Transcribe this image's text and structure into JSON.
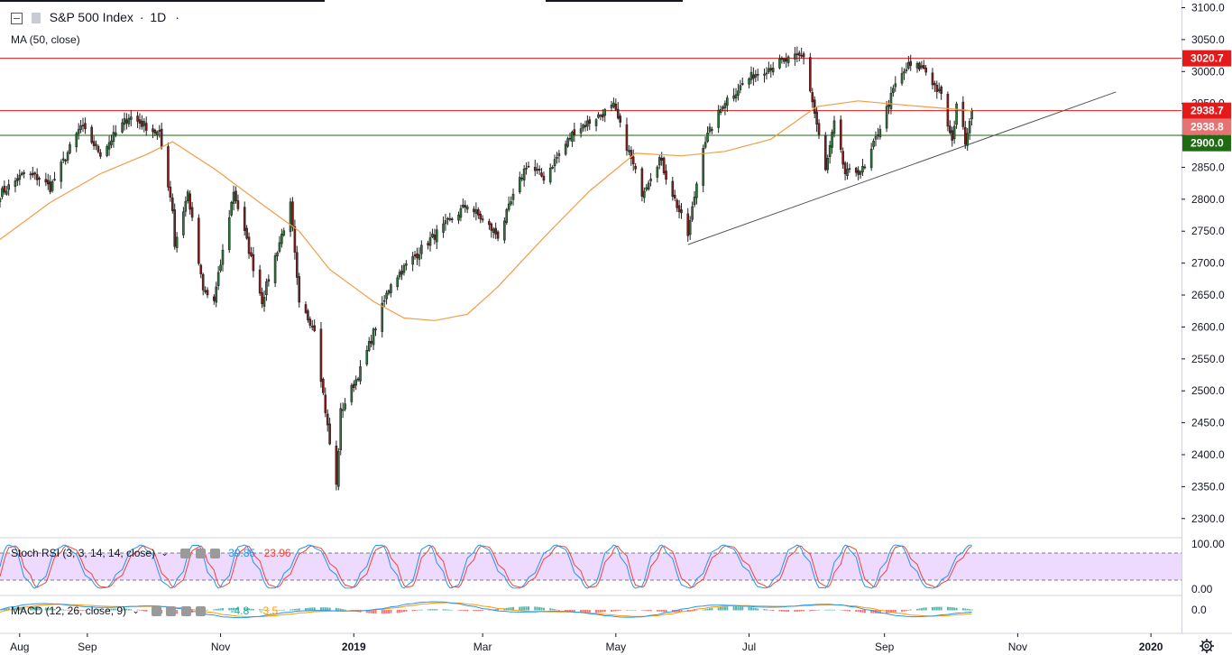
{
  "header": {
    "symbol": "S&P 500 Index",
    "interval": "1D",
    "separator": "·",
    "ma_label": "MA (50, close)"
  },
  "price_scale": {
    "ticks": [
      "3100.0",
      "3050.0",
      "3000.0",
      "2950.0",
      "2900.0",
      "2850.0",
      "2800.0",
      "2750.0",
      "2700.0",
      "2650.0",
      "2600.0",
      "2550.0",
      "2500.0",
      "2450.0",
      "2400.0",
      "2350.0",
      "2300.0"
    ],
    "range": [
      2270,
      3112
    ],
    "badges": [
      {
        "value": 3020.7,
        "label": "3020.7",
        "color": "#e41a1a"
      },
      {
        "value": 2938.7,
        "label": "2938.7",
        "color": "#e41a1a"
      },
      {
        "value": 2938.8,
        "label": "2938.8",
        "color": "#e57373"
      },
      {
        "value": 2900.0,
        "label": "2900.0",
        "color": "#1e6b12"
      }
    ]
  },
  "time_axis": {
    "labels": [
      "Aug",
      "Sep",
      "Nov",
      "2019",
      "Mar",
      "May",
      "Jul",
      "Sep",
      "Nov",
      "2020"
    ],
    "bold": [
      "2019",
      "2020"
    ]
  },
  "colors": {
    "up": "#2a7a38",
    "down": "#8b1a1a",
    "ma": "#f39c45",
    "red_level": "#e41a1a",
    "green_level": "#1e6b12",
    "trendline": "#555555",
    "rsi_fill": "#e8ccff",
    "stoch_k": "#2196f3",
    "stoch_d": "#f44336",
    "macd": "#2196f3",
    "signal": "#ff9800"
  },
  "chart_data": {
    "type": "candlestick",
    "title": "S&P 500 Index · 1D",
    "series_name": "S&P 500 Index",
    "x_range": [
      "2018-07-23",
      "2020-01-15"
    ],
    "ylim": [
      2270,
      3112
    ],
    "horizontal_levels": [
      {
        "value": 3020.7,
        "color": "red"
      },
      {
        "value": 2938.7,
        "color": "red"
      },
      {
        "value": 2900.0,
        "color": "green"
      }
    ],
    "trendline": {
      "from": [
        "2019-06-03",
        2729
      ],
      "to": [
        "2019-12-16",
        2968
      ]
    },
    "close_path": [
      [
        "2018-07-23",
        2808
      ],
      [
        "2018-08-03",
        2840
      ],
      [
        "2018-08-10",
        2833
      ],
      [
        "2018-08-15",
        2818
      ],
      [
        "2018-08-29",
        2914
      ],
      [
        "2018-09-07",
        2872
      ],
      [
        "2018-09-20",
        2930
      ],
      [
        "2018-09-28",
        2914
      ],
      [
        "2018-10-04",
        2901
      ],
      [
        "2018-10-10",
        2785
      ],
      [
        "2018-10-11",
        2728
      ],
      [
        "2018-10-17",
        2810
      ],
      [
        "2018-10-24",
        2656
      ],
      [
        "2018-10-29",
        2641
      ],
      [
        "2018-11-07",
        2813
      ],
      [
        "2018-11-20",
        2641
      ],
      [
        "2018-12-03",
        2790
      ],
      [
        "2018-12-07",
        2633
      ],
      [
        "2018-12-14",
        2600
      ],
      [
        "2018-12-21",
        2417
      ],
      [
        "2018-12-24",
        2351
      ],
      [
        "2018-12-26",
        2467
      ],
      [
        "2019-01-04",
        2532
      ],
      [
        "2019-01-18",
        2670
      ],
      [
        "2019-02-05",
        2737
      ],
      [
        "2019-02-22",
        2792
      ],
      [
        "2019-03-08",
        2743
      ],
      [
        "2019-03-21",
        2854
      ],
      [
        "2019-03-29",
        2834
      ],
      [
        "2019-04-12",
        2907
      ],
      [
        "2019-04-30",
        2945
      ],
      [
        "2019-05-13",
        2811
      ],
      [
        "2019-05-21",
        2864
      ],
      [
        "2019-06-03",
        2744
      ],
      [
        "2019-06-10",
        2886
      ],
      [
        "2019-06-20",
        2954
      ],
      [
        "2019-07-03",
        2995
      ],
      [
        "2019-07-15",
        3014
      ],
      [
        "2019-07-26",
        3025
      ],
      [
        "2019-08-05",
        2844
      ],
      [
        "2019-08-09",
        2918
      ],
      [
        "2019-08-14",
        2840
      ],
      [
        "2019-08-23",
        2847
      ],
      [
        "2019-09-06",
        2979
      ],
      [
        "2019-09-12",
        3009
      ],
      [
        "2019-09-19",
        3006
      ],
      [
        "2019-09-27",
        2961
      ],
      [
        "2019-10-02",
        2887
      ],
      [
        "2019-10-04",
        2952
      ],
      [
        "2019-10-08",
        2893
      ],
      [
        "2019-10-11",
        2938.8
      ]
    ],
    "moving_average": {
      "name": "MA (50, close)",
      "points": [
        [
          "2018-07-23",
          2737
        ],
        [
          "2018-08-15",
          2795
        ],
        [
          "2018-09-07",
          2840
        ],
        [
          "2018-09-28",
          2870
        ],
        [
          "2018-10-10",
          2890
        ],
        [
          "2018-10-29",
          2848
        ],
        [
          "2018-11-20",
          2792
        ],
        [
          "2018-12-07",
          2750
        ],
        [
          "2018-12-21",
          2690
        ],
        [
          "2019-01-10",
          2640
        ],
        [
          "2019-01-24",
          2614
        ],
        [
          "2019-02-07",
          2610
        ],
        [
          "2019-02-22",
          2620
        ],
        [
          "2019-03-08",
          2663
        ],
        [
          "2019-03-29",
          2740
        ],
        [
          "2019-04-19",
          2813
        ],
        [
          "2019-05-10",
          2872
        ],
        [
          "2019-05-31",
          2868
        ],
        [
          "2019-06-20",
          2875
        ],
        [
          "2019-07-11",
          2894
        ],
        [
          "2019-08-01",
          2945
        ],
        [
          "2019-08-20",
          2954
        ],
        [
          "2019-09-12",
          2947
        ],
        [
          "2019-10-11",
          2938.8
        ]
      ]
    },
    "indicators": [
      {
        "name": "Stoch RSI",
        "label": "Stoch RSI (3, 3, 14, 14, close)",
        "params": [
          3,
          3,
          14,
          14,
          "close"
        ],
        "values": {
          "k": 39.85,
          "d": 23.96
        },
        "value_labels": [
          "39.85",
          "23.96"
        ],
        "ylim": [
          0,
          100
        ],
        "band": [
          20,
          80
        ],
        "ticks": [
          "100.00",
          "0.00"
        ]
      },
      {
        "name": "MACD",
        "label": "MACD (12, 26, close, 9)",
        "params": [
          12,
          26,
          "close",
          9
        ],
        "values": {
          "histogram": -4.8,
          "macd": -3.5
        },
        "value_labels": [
          "-4.8",
          "-3.5"
        ],
        "ticks": [
          "0.0"
        ]
      }
    ]
  }
}
